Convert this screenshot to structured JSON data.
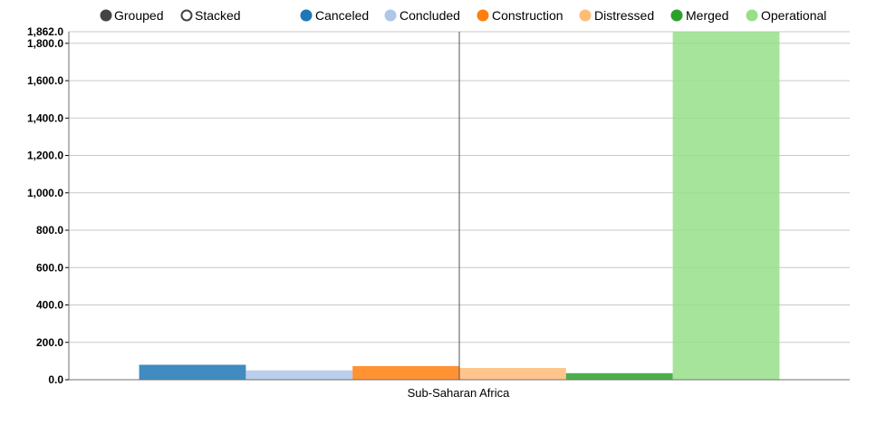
{
  "controls": [
    {
      "label": "Grouped",
      "selected": true
    },
    {
      "label": "Stacked",
      "selected": false
    }
  ],
  "chart_data": {
    "type": "bar",
    "categories": [
      "Sub-Saharan Africa"
    ],
    "series": [
      {
        "name": "Canceled",
        "color": "#1f77b4",
        "values": [
          80
        ]
      },
      {
        "name": "Concluded",
        "color": "#aec7e8",
        "values": [
          50
        ]
      },
      {
        "name": "Construction",
        "color": "#ff7f0e",
        "values": [
          73
        ]
      },
      {
        "name": "Distressed",
        "color": "#ffbb78",
        "values": [
          63
        ]
      },
      {
        "name": "Merged",
        "color": "#2ca02c",
        "values": [
          35
        ]
      },
      {
        "name": "Operational",
        "color": "#98df8a",
        "values": [
          1862
        ]
      }
    ],
    "yticks": [
      "0.0",
      "200.0",
      "400.0",
      "600.0",
      "800.0",
      "1,000.0",
      "1,200.0",
      "1,400.0",
      "1,600.0",
      "1,800.0"
    ],
    "ytick_values": [
      0,
      200,
      400,
      600,
      800,
      1000,
      1200,
      1400,
      1600,
      1800
    ],
    "ymax_label": "1,862.0",
    "ylim": [
      0,
      1862
    ],
    "grid": true,
    "legend_position": "top",
    "title": "",
    "xlabel": "",
    "ylabel": ""
  }
}
